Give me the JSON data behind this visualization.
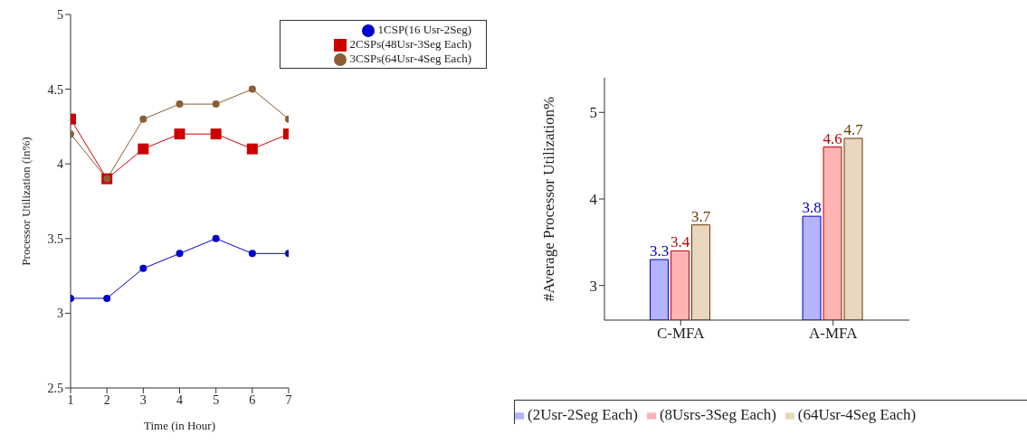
{
  "chart_data": [
    {
      "type": "line",
      "xlabel": "Time (in Hour)",
      "ylabel": "Processor Utilization (in%)",
      "x": [
        1,
        2,
        3,
        4,
        5,
        6,
        7
      ],
      "xlim": [
        1,
        7
      ],
      "xticks": [
        1,
        2,
        3,
        4,
        5,
        6,
        7
      ],
      "ylim": [
        2.5,
        5
      ],
      "yticks": [
        2.5,
        3,
        3.5,
        4,
        4.5,
        5
      ],
      "legend": "top right",
      "series": [
        {
          "name": "1CSP(16 Usr-2Seg)",
          "color": "#0000cc",
          "marker": "circle",
          "values": [
            3.1,
            3.1,
            3.3,
            3.4,
            3.5,
            3.4,
            3.4
          ]
        },
        {
          "name": "2CSPs(48Usr-3Seg Each)",
          "color": "#cc0000",
          "marker": "square",
          "values": [
            4.3,
            3.9,
            4.1,
            4.2,
            4.2,
            4.1,
            4.2
          ]
        },
        {
          "name": "3CSPs(64Usr-4Seg Each)",
          "color": "#8b5e34",
          "marker": "circle",
          "values": [
            4.2,
            3.9,
            4.3,
            4.4,
            4.4,
            4.5,
            4.3
          ]
        }
      ]
    },
    {
      "type": "bar",
      "ylabel": "#Average Processor Utilization%",
      "categories": [
        "C-MFA",
        "A-MFA"
      ],
      "ylim": [
        2.6,
        5.4
      ],
      "yticks": [
        3,
        4,
        5
      ],
      "legend": "bottom",
      "data_labels": true,
      "series": [
        {
          "name": "(2Usr-2Seg Each)",
          "color": "#b3b3ff",
          "values": [
            3.3,
            3.8
          ]
        },
        {
          "name": "(8Usrs-3Seg Each)",
          "color": "#ffb3b3",
          "values": [
            3.4,
            4.6
          ]
        },
        {
          "name": "(64Usr-4Seg Each)",
          "color": "#e8d6bf",
          "values": [
            3.7,
            4.7
          ]
        }
      ]
    }
  ]
}
